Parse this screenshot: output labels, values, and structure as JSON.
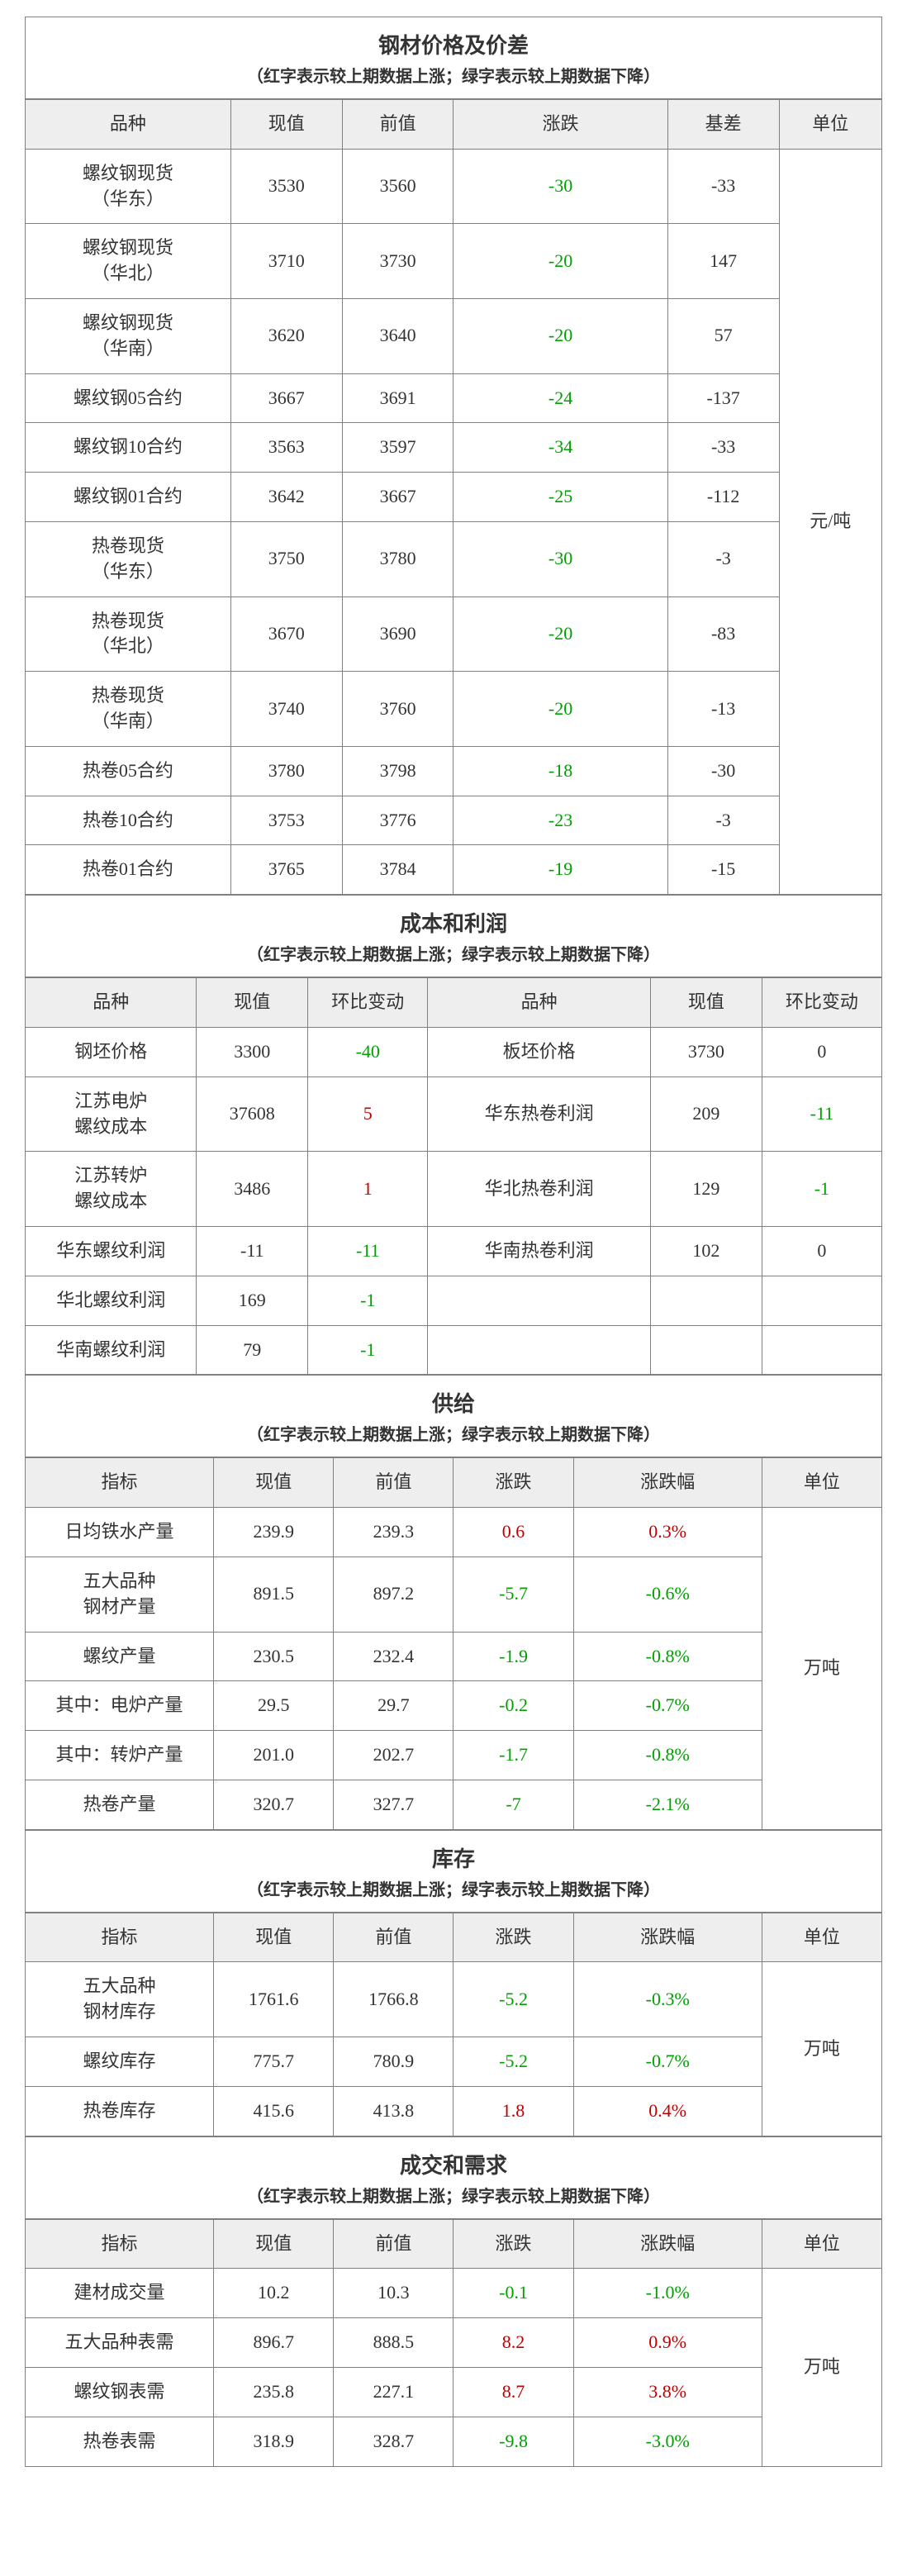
{
  "colors": {
    "up": "#c00000",
    "down": "#00a000",
    "neutral": "#333333",
    "header_bg": "#eeeeee",
    "border": "#808080",
    "bg": "#ffffff"
  },
  "legend_text": "（红字表示较上期数据上涨；绿字表示较上期数据下降）",
  "price": {
    "title": "钢材价格及价差",
    "headers": [
      "品种",
      "现值",
      "前值",
      "涨跌",
      "基差",
      "单位"
    ],
    "unit": "元/吨",
    "rows": [
      {
        "name": "螺纹钢现货（华东）",
        "cur": "3530",
        "prev": "3560",
        "chg": "-30",
        "basis": "-33"
      },
      {
        "name": "螺纹钢现货（华北）",
        "cur": "3710",
        "prev": "3730",
        "chg": "-20",
        "basis": "147"
      },
      {
        "name": "螺纹钢现货（华南）",
        "cur": "3620",
        "prev": "3640",
        "chg": "-20",
        "basis": "57"
      },
      {
        "name": "螺纹钢05合约",
        "cur": "3667",
        "prev": "3691",
        "chg": "-24",
        "basis": "-137"
      },
      {
        "name": "螺纹钢10合约",
        "cur": "3563",
        "prev": "3597",
        "chg": "-34",
        "basis": "-33"
      },
      {
        "name": "螺纹钢01合约",
        "cur": "3642",
        "prev": "3667",
        "chg": "-25",
        "basis": "-112"
      },
      {
        "name": "热卷现货（华东）",
        "cur": "3750",
        "prev": "3780",
        "chg": "-30",
        "basis": "-3"
      },
      {
        "name": "热卷现货（华北）",
        "cur": "3670",
        "prev": "3690",
        "chg": "-20",
        "basis": "-83"
      },
      {
        "name": "热卷现货（华南）",
        "cur": "3740",
        "prev": "3760",
        "chg": "-20",
        "basis": "-13"
      },
      {
        "name": "热卷05合约",
        "cur": "3780",
        "prev": "3798",
        "chg": "-18",
        "basis": "-30"
      },
      {
        "name": "热卷10合约",
        "cur": "3753",
        "prev": "3776",
        "chg": "-23",
        "basis": "-3"
      },
      {
        "name": "热卷01合约",
        "cur": "3765",
        "prev": "3784",
        "chg": "-19",
        "basis": "-15"
      }
    ]
  },
  "cost": {
    "title": "成本和利润",
    "headers": [
      "品种",
      "现值",
      "环比变动",
      "品种",
      "现值",
      "环比变动"
    ],
    "rows": [
      {
        "l_name": "钢坯价格",
        "l_cur": "3300",
        "l_chg": "-40",
        "r_name": "板坯价格",
        "r_cur": "3730",
        "r_chg": "0"
      },
      {
        "l_name": "江苏电炉螺纹成本",
        "l_cur": "37608",
        "l_chg": "5",
        "r_name": "华东热卷利润",
        "r_cur": "209",
        "r_chg": "-11"
      },
      {
        "l_name": "江苏转炉螺纹成本",
        "l_cur": "3486",
        "l_chg": "1",
        "r_name": "华北热卷利润",
        "r_cur": "129",
        "r_chg": "-1"
      },
      {
        "l_name": "华东螺纹利润",
        "l_cur": "-11",
        "l_chg": "-11",
        "r_name": "华南热卷利润",
        "r_cur": "102",
        "r_chg": "0"
      },
      {
        "l_name": "华北螺纹利润",
        "l_cur": "169",
        "l_chg": "-1",
        "r_name": "",
        "r_cur": "",
        "r_chg": ""
      },
      {
        "l_name": "华南螺纹利润",
        "l_cur": "79",
        "l_chg": "-1",
        "r_name": "",
        "r_cur": "",
        "r_chg": ""
      }
    ]
  },
  "supply": {
    "title": "供给",
    "headers": [
      "指标",
      "现值",
      "前值",
      "涨跌",
      "涨跌幅",
      "单位"
    ],
    "unit": "万吨",
    "rows": [
      {
        "name": "日均铁水产量",
        "cur": "239.9",
        "prev": "239.3",
        "chg": "0.6",
        "pct": "0.3%"
      },
      {
        "name": "五大品种钢材产量",
        "cur": "891.5",
        "prev": "897.2",
        "chg": "-5.7",
        "pct": "-0.6%"
      },
      {
        "name": "螺纹产量",
        "cur": "230.5",
        "prev": "232.4",
        "chg": "-1.9",
        "pct": "-0.8%"
      },
      {
        "name": "其中：电炉产量",
        "cur": "29.5",
        "prev": "29.7",
        "chg": "-0.2",
        "pct": "-0.7%"
      },
      {
        "name": "其中：转炉产量",
        "cur": "201.0",
        "prev": "202.7",
        "chg": "-1.7",
        "pct": "-0.8%"
      },
      {
        "name": "热卷产量",
        "cur": "320.7",
        "prev": "327.7",
        "chg": "-7",
        "pct": "-2.1%"
      }
    ]
  },
  "inventory": {
    "title": "库存",
    "headers": [
      "指标",
      "现值",
      "前值",
      "涨跌",
      "涨跌幅",
      "单位"
    ],
    "unit": "万吨",
    "rows": [
      {
        "name": "五大品种钢材库存",
        "cur": "1761.6",
        "prev": "1766.8",
        "chg": "-5.2",
        "pct": "-0.3%"
      },
      {
        "name": "螺纹库存",
        "cur": "775.7",
        "prev": "780.9",
        "chg": "-5.2",
        "pct": "-0.7%"
      },
      {
        "name": "热卷库存",
        "cur": "415.6",
        "prev": "413.8",
        "chg": "1.8",
        "pct": "0.4%"
      }
    ]
  },
  "demand": {
    "title": "成交和需求",
    "headers": [
      "指标",
      "现值",
      "前值",
      "涨跌",
      "涨跌幅",
      "单位"
    ],
    "unit": "万吨",
    "rows": [
      {
        "name": "建材成交量",
        "cur": "10.2",
        "prev": "10.3",
        "chg": "-0.1",
        "pct": "-1.0%"
      },
      {
        "name": "五大品种表需",
        "cur": "896.7",
        "prev": "888.5",
        "chg": "8.2",
        "pct": "0.9%"
      },
      {
        "name": "螺纹钢表需",
        "cur": "235.8",
        "prev": "227.1",
        "chg": "8.7",
        "pct": "3.8%"
      },
      {
        "name": "热卷表需",
        "cur": "318.9",
        "prev": "328.7",
        "chg": "-9.8",
        "pct": "-3.0%"
      }
    ]
  }
}
